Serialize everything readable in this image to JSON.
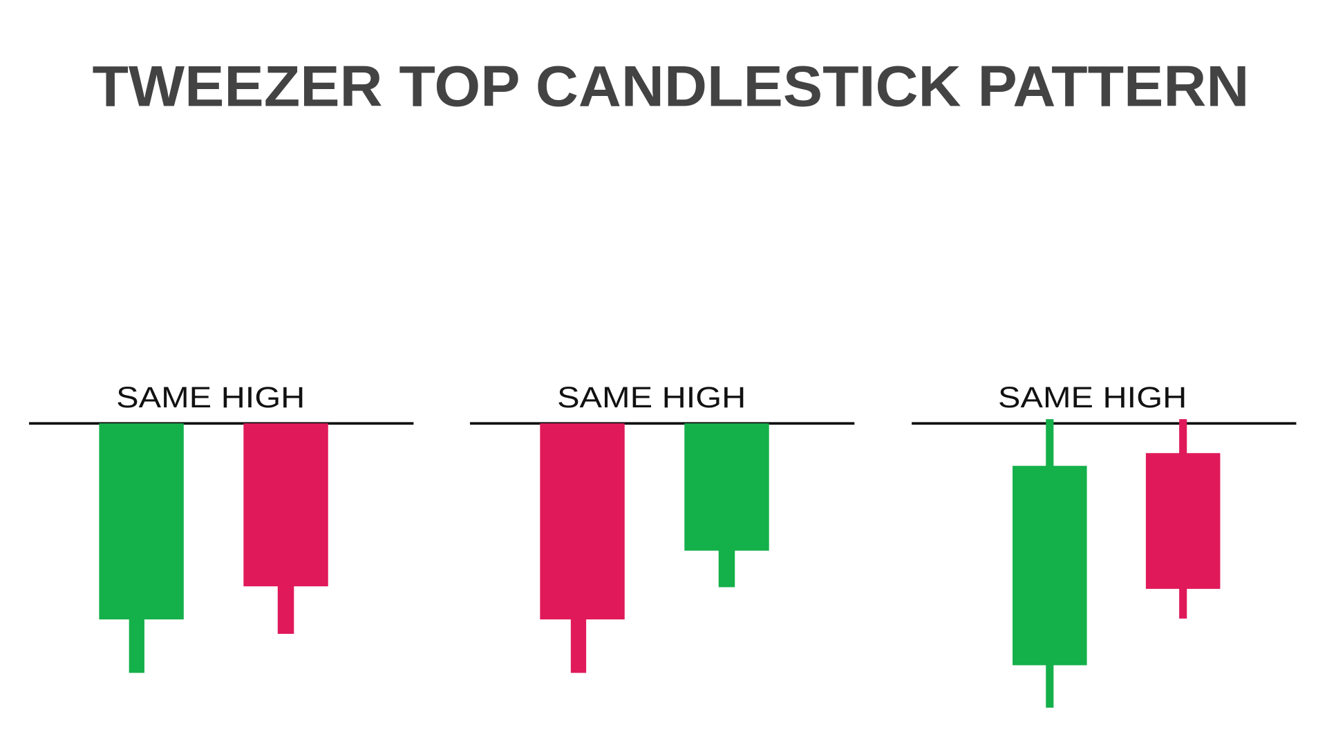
{
  "title": "TWEEZER TOP CANDLESTICK PATTERN",
  "panels": [
    {
      "label": "SAME HIGH"
    },
    {
      "label": "SAME HIGH"
    },
    {
      "label": "SAME HIGH"
    }
  ]
}
